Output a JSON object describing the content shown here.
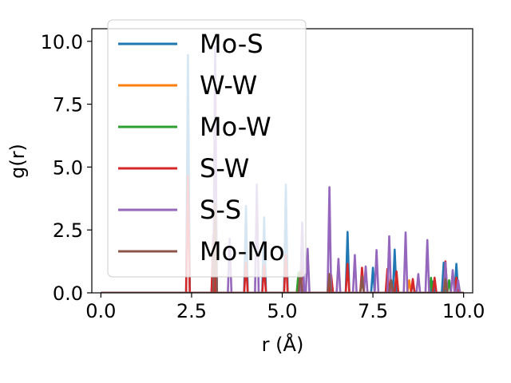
{
  "chart_data": {
    "type": "line",
    "xlabel": "r (Å)",
    "ylabel": "g(r)",
    "xlim": [
      -0.25,
      10.25
    ],
    "ylim": [
      0,
      10.5
    ],
    "x_ticks": [
      "0.0",
      "2.5",
      "5.0",
      "7.5",
      "10.0"
    ],
    "x_tick_values": [
      0,
      2.5,
      5,
      7.5,
      10
    ],
    "y_ticks": [
      "0.0",
      "2.5",
      "5.0",
      "7.5",
      "10.0"
    ],
    "y_tick_values": [
      0,
      2.5,
      5,
      7.5,
      10
    ],
    "grid": false,
    "legend_position": "upper-left",
    "series": [
      {
        "name": "Mo-S",
        "color": "#1f77b4",
        "peaks": [
          [
            2.4,
            9.45
          ],
          [
            3.1,
            1.5
          ],
          [
            4.0,
            3.45
          ],
          [
            4.5,
            3.0
          ],
          [
            5.1,
            4.3
          ],
          [
            5.55,
            2.75
          ],
          [
            6.35,
            0.55
          ],
          [
            6.8,
            2.42
          ],
          [
            7.5,
            1.0
          ],
          [
            8.1,
            1.72
          ],
          [
            8.6,
            0.45
          ],
          [
            9.15,
            0.45
          ],
          [
            9.45,
            1.2
          ],
          [
            9.8,
            1.15
          ]
        ]
      },
      {
        "name": "W-W",
        "color": "#ff7f0e",
        "peaks": [
          [
            3.15,
            3.5
          ],
          [
            5.45,
            0.8
          ],
          [
            6.3,
            0.65
          ],
          [
            7.2,
            0.6
          ],
          [
            8.0,
            0.45
          ],
          [
            8.5,
            0.5
          ],
          [
            9.5,
            0.45
          ]
        ]
      },
      {
        "name": "Mo-W",
        "color": "#2ca02c",
        "peaks": [
          [
            3.15,
            3.6
          ],
          [
            5.45,
            0.8
          ],
          [
            6.3,
            0.65
          ],
          [
            7.2,
            0.55
          ],
          [
            8.0,
            0.5
          ],
          [
            9.1,
            0.6
          ],
          [
            9.6,
            0.5
          ]
        ]
      },
      {
        "name": "S-W",
        "color": "#d62728",
        "peaks": [
          [
            2.4,
            4.65
          ],
          [
            3.1,
            2.3
          ],
          [
            4.0,
            1.2
          ],
          [
            4.5,
            1.1
          ],
          [
            5.1,
            1.5
          ],
          [
            5.55,
            1.3
          ],
          [
            6.35,
            0.7
          ],
          [
            6.8,
            1.15
          ],
          [
            7.2,
            1.0
          ],
          [
            7.9,
            0.95
          ],
          [
            8.15,
            0.85
          ],
          [
            8.6,
            0.55
          ],
          [
            9.2,
            0.6
          ],
          [
            9.5,
            1.25
          ],
          [
            9.8,
            0.6
          ]
        ]
      },
      {
        "name": "S-S",
        "color": "#9467bd",
        "peaks": [
          [
            3.15,
            9.8
          ],
          [
            3.55,
            2.15
          ],
          [
            4.3,
            4.3
          ],
          [
            5.55,
            2.8
          ],
          [
            5.7,
            1.75
          ],
          [
            6.3,
            4.2
          ],
          [
            6.55,
            1.35
          ],
          [
            7.0,
            1.5
          ],
          [
            7.3,
            1.05
          ],
          [
            7.6,
            1.7
          ],
          [
            7.95,
            2.25
          ],
          [
            8.4,
            2.4
          ],
          [
            8.75,
            0.75
          ],
          [
            9.0,
            2.1
          ],
          [
            9.5,
            1.2
          ],
          [
            9.7,
            0.9
          ],
          [
            9.85,
            0.5
          ]
        ]
      },
      {
        "name": "Mo-Mo",
        "color": "#8c564b",
        "peaks": [
          [
            3.15,
            3.55
          ],
          [
            5.5,
            0.85
          ],
          [
            6.3,
            0.75
          ],
          [
            7.2,
            0.65
          ],
          [
            8.0,
            0.5
          ],
          [
            9.5,
            0.55
          ]
        ]
      }
    ]
  }
}
